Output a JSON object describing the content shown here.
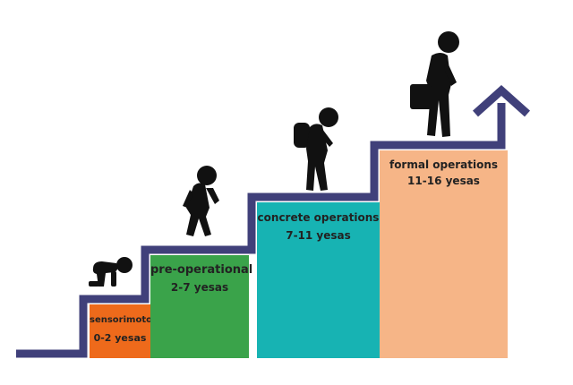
{
  "colors": {
    "stair": "#40407a",
    "sensorimotor": "#ee6a1b",
    "preoperational": "#3aa34a",
    "concrete": "#17b3b3",
    "formal": "#f6b587",
    "figure": "#111111"
  },
  "stages": [
    {
      "name": "sensorimotor",
      "ages": "0-2 yesas",
      "color": "#ee6a1b"
    },
    {
      "name": "pre-operational",
      "ages": "2-7 yesas",
      "color": "#3aa34a"
    },
    {
      "name": "concrete operations",
      "ages": "7-11 yesas",
      "color": "#17b3b3"
    },
    {
      "name": "formal operations",
      "ages": "11-16 yesas",
      "color": "#f6b587"
    }
  ],
  "icons": [
    "crawling-baby-icon",
    "walking-child-icon",
    "student-backpack-icon",
    "adult-briefcase-icon",
    "up-arrow-icon"
  ]
}
